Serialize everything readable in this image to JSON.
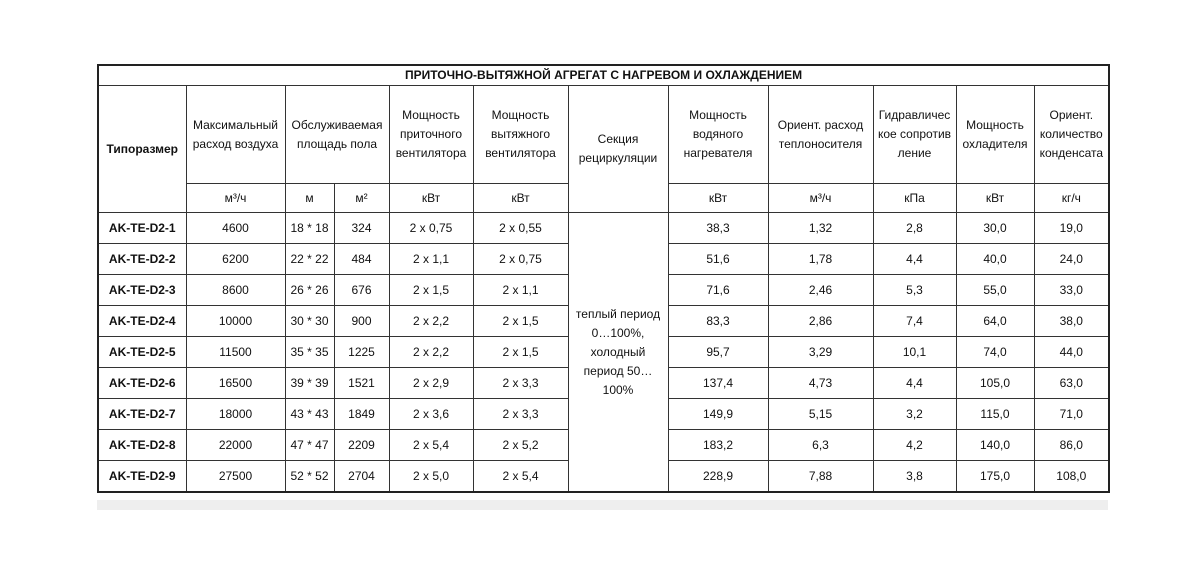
{
  "title": "ПРИТОЧНО-ВЫТЯЖНОЙ АГРЕГАТ С НАГРЕВОМ И ОХЛАЖДЕНИЕМ",
  "headers": [
    "Типоразмер",
    "Максимальный расход воздуха",
    "Обслуживаемая площадь пола",
    "Мощность приточного вентилятора",
    "Мощность вытяжного вентилятора",
    "Секция рециркуляции",
    "Мощность водяного нагревателя",
    "Ориент. расход теплоносителя",
    "Гидравлическое сопротивление",
    "Мощность охладителя",
    "Ориент. количество конденсата"
  ],
  "units": [
    "м³/ч",
    "м",
    "м²",
    "кВт",
    "кВт",
    "кВт",
    "м³/ч",
    "кПа",
    "кВт",
    "кг/ч"
  ],
  "recirculation": "теплый период 0…100%, холодный период 50…100%",
  "rows": [
    [
      "AK-TE-D2-1",
      "4600",
      "18 * 18",
      "324",
      "2 x 0,75",
      "2 x 0,55",
      "38,3",
      "1,32",
      "2,8",
      "30,0",
      "19,0"
    ],
    [
      "AK-TE-D2-2",
      "6200",
      "22 * 22",
      "484",
      "2 x 1,1",
      "2 x 0,75",
      "51,6",
      "1,78",
      "4,4",
      "40,0",
      "24,0"
    ],
    [
      "AK-TE-D2-3",
      "8600",
      "26 * 26",
      "676",
      "2 x 1,5",
      "2 x 1,1",
      "71,6",
      "2,46",
      "5,3",
      "55,0",
      "33,0"
    ],
    [
      "AK-TE-D2-4",
      "10000",
      "30 * 30",
      "900",
      "2 x 2,2",
      "2 x 1,5",
      "83,3",
      "2,86",
      "7,4",
      "64,0",
      "38,0"
    ],
    [
      "AK-TE-D2-5",
      "11500",
      "35 * 35",
      "1225",
      "2 x 2,2",
      "2 x 1,5",
      "95,7",
      "3,29",
      "10,1",
      "74,0",
      "44,0"
    ],
    [
      "AK-TE-D2-6",
      "16500",
      "39 * 39",
      "1521",
      "2 x 2,9",
      "2 x 3,3",
      "137,4",
      "4,73",
      "4,4",
      "105,0",
      "63,0"
    ],
    [
      "AK-TE-D2-7",
      "18000",
      "43 * 43",
      "1849",
      "2 x 3,6",
      "2 x 3,3",
      "149,9",
      "5,15",
      "3,2",
      "115,0",
      "71,0"
    ],
    [
      "AK-TE-D2-8",
      "22000",
      "47 * 47",
      "2209",
      "2 x 5,4",
      "2 x 5,2",
      "183,2",
      "6,3",
      "4,2",
      "140,0",
      "86,0"
    ],
    [
      "AK-TE-D2-9",
      "27500",
      "52 * 52",
      "2704",
      "2 x 5,0",
      "2 x 5,4",
      "228,9",
      "7,88",
      "3,8",
      "175,0",
      "108,0"
    ]
  ]
}
